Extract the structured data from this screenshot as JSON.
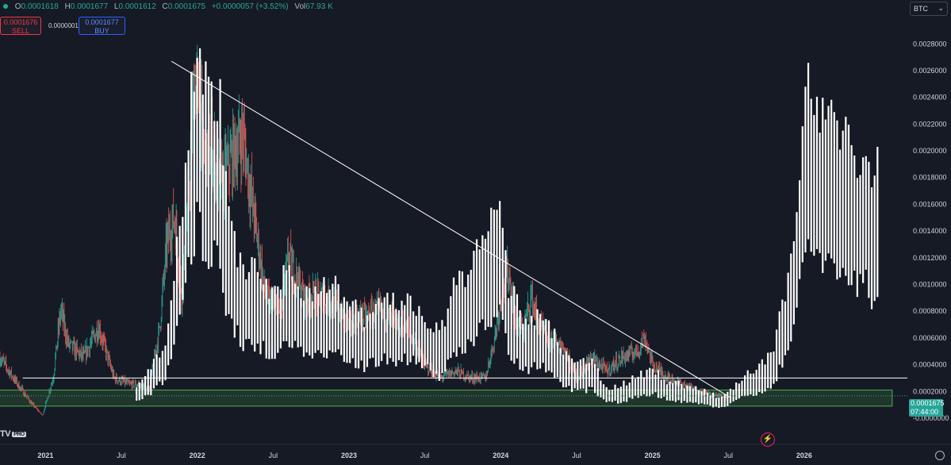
{
  "ohlc": {
    "open_label": "O",
    "open": "0.0001618",
    "high_label": "H",
    "high": "0.0001677",
    "low_label": "L",
    "low": "0.0001612",
    "close_label": "C",
    "close": "0.0001675",
    "change": "+0.0000057 (+3.52%)",
    "vol_label": "Vol",
    "vol": "67.93 K"
  },
  "trade": {
    "sell_price": "0.0001676",
    "sell_label": "SELL",
    "spread": "0.0000001",
    "buy_price": "0.0001677",
    "buy_label": "BUY"
  },
  "symbol": {
    "compare_label": "BTC"
  },
  "last_price": {
    "value": "0.0001675",
    "countdown": "07:44:00"
  },
  "branding": {
    "logo": "TV",
    "badge": "PRO"
  },
  "colors": {
    "up": "#26a69a",
    "down": "#ef5350",
    "overlay": "#ffffff",
    "background": "#161a25",
    "zone": "#4caf50"
  },
  "chart_data": {
    "type": "candlestick",
    "price_axis_ticks": [
      "0.0028000",
      "0.0026000",
      "0.0024000",
      "0.0022000",
      "0.0020000",
      "0.0018000",
      "0.0016000",
      "0.0014000",
      "0.0012000",
      "0.0010000",
      "0.0008000",
      "0.0006000",
      "0.0004000",
      "0.0002000",
      "-0.0000000"
    ],
    "price_axis_values": [
      0.0028,
      0.0026,
      0.0024,
      0.0022,
      0.002,
      0.0018,
      0.0016,
      0.0014,
      0.0012,
      0.001,
      0.0008,
      0.0006,
      0.0004,
      0.0002,
      0.0
    ],
    "ylim": [
      -3e-05,
      0.00295
    ],
    "time_axis_labels": [
      "2021",
      "Jul",
      "2022",
      "Jul",
      "2023",
      "Jul",
      "2024",
      "Jul",
      "2025",
      "Jul",
      "2026"
    ],
    "time_axis_values": [
      2021.0,
      2021.5,
      2022.0,
      2022.5,
      2023.0,
      2023.5,
      2024.0,
      2024.5,
      2025.0,
      2025.5,
      2026.0
    ],
    "xlim": [
      2020.7,
      2026.68
    ],
    "series": [
      {
        "name": "main",
        "style": "candles",
        "points": [
          [
            2020.7,
            0.00045
          ],
          [
            2020.8,
            0.00028
          ],
          [
            2020.9,
            0.00012
          ],
          [
            2020.98,
            2e-05
          ],
          [
            2021.05,
            0.0003
          ],
          [
            2021.1,
            0.0008
          ],
          [
            2021.15,
            0.00055
          ],
          [
            2021.25,
            0.00045
          ],
          [
            2021.35,
            0.00068
          ],
          [
            2021.45,
            0.0003
          ],
          [
            2021.55,
            0.00025
          ],
          [
            2021.62,
            0.00025
          ],
          [
            2021.68,
            0.0002
          ],
          [
            2021.75,
            0.00065
          ],
          [
            2021.8,
            0.0013
          ],
          [
            2021.85,
            0.0015
          ],
          [
            2021.9,
            0.0009
          ],
          [
            2021.95,
            0.0018
          ],
          [
            2021.98,
            0.0025
          ],
          [
            2022.02,
            0.0023
          ],
          [
            2022.05,
            0.0019
          ],
          [
            2022.1,
            0.002
          ],
          [
            2022.15,
            0.0017
          ],
          [
            2022.25,
            0.002
          ],
          [
            2022.3,
            0.0021
          ],
          [
            2022.35,
            0.0017
          ],
          [
            2022.45,
            0.0009
          ],
          [
            2022.55,
            0.00075
          ],
          [
            2022.6,
            0.0012
          ],
          [
            2022.7,
            0.0009
          ],
          [
            2022.85,
            0.0009
          ],
          [
            2023.0,
            0.0007
          ],
          [
            2023.1,
            0.00075
          ],
          [
            2023.2,
            0.0008
          ],
          [
            2023.3,
            0.0007
          ],
          [
            2023.4,
            0.00065
          ],
          [
            2023.5,
            0.0004
          ],
          [
            2023.6,
            0.0003
          ],
          [
            2023.7,
            0.00035
          ],
          [
            2023.8,
            0.0003
          ],
          [
            2023.9,
            0.0003
          ],
          [
            2023.96,
            0.0006
          ],
          [
            2024.0,
            0.0009
          ],
          [
            2024.05,
            0.0011
          ],
          [
            2024.1,
            0.0007
          ],
          [
            2024.15,
            0.00065
          ],
          [
            2024.2,
            0.0009
          ],
          [
            2024.25,
            0.0007
          ],
          [
            2024.3,
            0.0006
          ],
          [
            2024.4,
            0.00055
          ],
          [
            2024.5,
            0.0003
          ],
          [
            2024.6,
            0.00045
          ],
          [
            2024.7,
            0.00035
          ],
          [
            2024.8,
            0.00045
          ],
          [
            2024.9,
            0.0005
          ],
          [
            2024.95,
            0.0006
          ],
          [
            2025.0,
            0.0004
          ],
          [
            2025.1,
            0.0003
          ],
          [
            2025.2,
            0.00025
          ],
          [
            2025.3,
            0.0002
          ],
          [
            2025.4,
            0.00017
          ],
          [
            2025.5,
            0.00016
          ]
        ]
      },
      {
        "name": "overlay",
        "style": "bars",
        "points": [
          [
            2021.6,
            0.0002
          ],
          [
            2021.7,
            0.0003
          ],
          [
            2021.8,
            0.0005
          ],
          [
            2021.9,
            0.0013
          ],
          [
            2022.0,
            0.0024
          ],
          [
            2022.05,
            0.002
          ],
          [
            2022.15,
            0.0019
          ],
          [
            2022.2,
            0.0012
          ],
          [
            2022.3,
            0.0009
          ],
          [
            2022.4,
            0.0009
          ],
          [
            2022.5,
            0.0007
          ],
          [
            2022.6,
            0.0009
          ],
          [
            2022.7,
            0.00075
          ],
          [
            2022.8,
            0.0008
          ],
          [
            2022.9,
            0.0008
          ],
          [
            2023.0,
            0.0007
          ],
          [
            2023.1,
            0.0006
          ],
          [
            2023.2,
            0.0007
          ],
          [
            2023.3,
            0.0007
          ],
          [
            2023.4,
            0.0007
          ],
          [
            2023.5,
            0.0006
          ],
          [
            2023.6,
            0.0005
          ],
          [
            2023.7,
            0.0008
          ],
          [
            2023.8,
            0.0009
          ],
          [
            2023.9,
            0.0011
          ],
          [
            2024.0,
            0.0013
          ],
          [
            2024.05,
            0.0008
          ],
          [
            2024.15,
            0.0006
          ],
          [
            2024.3,
            0.0006
          ],
          [
            2024.4,
            0.0004
          ],
          [
            2024.5,
            0.00032
          ],
          [
            2024.6,
            0.00035
          ],
          [
            2024.7,
            0.00018
          ],
          [
            2024.8,
            0.0002
          ],
          [
            2024.9,
            0.00025
          ],
          [
            2025.0,
            0.0003
          ],
          [
            2025.1,
            0.00022
          ],
          [
            2025.2,
            0.0002
          ],
          [
            2025.3,
            0.00018
          ],
          [
            2025.45,
            0.00012
          ],
          [
            2025.5,
            0.00015
          ],
          [
            2025.6,
            0.00025
          ],
          [
            2025.7,
            0.0003
          ],
          [
            2025.8,
            0.0004
          ],
          [
            2025.88,
            0.0008
          ],
          [
            2025.95,
            0.0013
          ],
          [
            2026.0,
            0.0018
          ],
          [
            2026.05,
            0.0021
          ],
          [
            2026.1,
            0.0018
          ],
          [
            2026.2,
            0.0018
          ],
          [
            2026.3,
            0.0017
          ],
          [
            2026.35,
            0.0015
          ],
          [
            2026.4,
            0.0017
          ],
          [
            2026.45,
            0.0013
          ],
          [
            2026.5,
            0.0016
          ]
        ]
      }
    ],
    "drawings": {
      "trendline": {
        "from": [
          2021.83,
          0.00267
        ],
        "to": [
          2025.52,
          0.00015
        ]
      },
      "horizontal_line": {
        "from": 2020.85,
        "to": 2026.68,
        "price": 0.0003
      },
      "support_zone": {
        "from": 2020.68,
        "to": 2026.58,
        "low": 9e-05,
        "high": 0.00021
      }
    },
    "grid": false
  }
}
